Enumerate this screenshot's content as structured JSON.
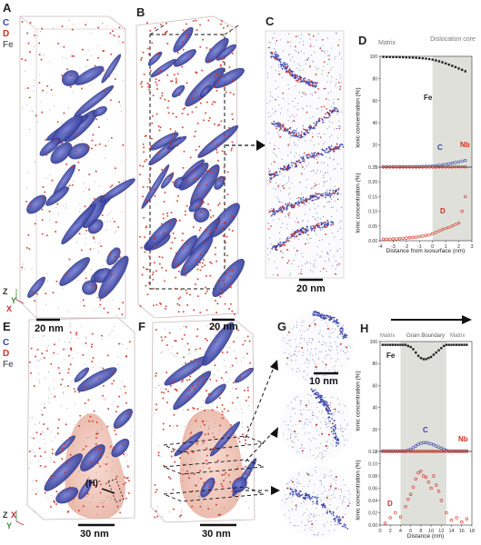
{
  "legend_top": {
    "c": "C",
    "d": "D",
    "fe": "Fe"
  },
  "legend_bottom": {
    "c": "C",
    "d": "D",
    "fe": "Fe"
  },
  "colors": {
    "carbon": "#3a44a8",
    "deuterium": "#d03020",
    "iron": "#6b6b6b",
    "boundary_shade": "#d8d8d2"
  },
  "panels": {
    "A": "A",
    "B": "B",
    "C": "C",
    "D": "D",
    "E": "E",
    "F": "F",
    "G": "G",
    "H": "H"
  },
  "scales": {
    "a": "20 nm",
    "b": "20 nm",
    "c": "20 nm",
    "e": "30 nm",
    "f": "30 nm",
    "g": "10 nm"
  },
  "axes": {
    "z": "Z",
    "x": "X",
    "y": "Y"
  },
  "marker_h": "(H)",
  "chart_data": [
    {
      "type": "scatter",
      "panel": "D",
      "region_labels": [
        "Matrix",
        "Dislocation core"
      ],
      "xlabel": "Distance from isosurface (nm)",
      "xlim": [
        -4,
        3
      ],
      "x_ticks": [
        "-4",
        "-3",
        "-2",
        "-1",
        "0",
        "1",
        "2",
        "3"
      ],
      "top": {
        "ylabel": "Ionic concentration (%)",
        "ylim": [
          0,
          100
        ],
        "y_ticks": [
          "0",
          "20",
          "40",
          "60",
          "80",
          "100"
        ],
        "series": [
          {
            "name": "Fe",
            "x": [
              -3.75,
              -3.5,
              -3.25,
              -3,
              -2.75,
              -2.5,
              -2.25,
              -2,
              -1.75,
              -1.5,
              -1.25,
              -1,
              -0.75,
              -0.5,
              -0.25,
              0,
              0.25,
              0.5,
              0.75,
              1,
              1.25,
              1.5,
              1.75,
              2,
              2.25,
              2.5
            ],
            "y": [
              99.5,
              99.4,
              99.4,
              99.3,
              99.3,
              99.2,
              99.1,
              99,
              98.9,
              98.8,
              98.6,
              98.4,
              98.2,
              97.9,
              97.5,
              97,
              96.3,
              95.5,
              94.6,
              93.6,
              92.5,
              91.4,
              90.3,
              89,
              87.8,
              86.5
            ]
          },
          {
            "name": "C",
            "x": [
              -3.75,
              -3.5,
              -3.25,
              -3,
              -2.75,
              -2.5,
              -2.25,
              -2,
              -1.75,
              -1.5,
              -1.25,
              -1,
              -0.75,
              -0.5,
              -0.25,
              0,
              0.25,
              0.5,
              0.75,
              1,
              1.25,
              1.5,
              1.75,
              2,
              2.25,
              2.5
            ],
            "y": [
              0.3,
              0.3,
              0.3,
              0.3,
              0.3,
              0.4,
              0.4,
              0.4,
              0.5,
              0.5,
              0.6,
              0.6,
              0.7,
              0.8,
              0.9,
              1,
              1.3,
              1.6,
              2,
              2.5,
              3,
              3.6,
              4.2,
              4.8,
              5.4,
              6
            ]
          },
          {
            "name": "Nb",
            "x": [
              -3.75,
              -3.5,
              -3.25,
              -3,
              -2.75,
              -2.5,
              -2.25,
              -2,
              -1.75,
              -1.5,
              -1.25,
              -1,
              -0.75,
              -0.5,
              -0.25,
              0,
              0.25,
              0.5,
              0.75,
              1,
              1.25,
              1.5,
              1.75,
              2,
              2.25,
              2.5
            ],
            "y": [
              0.1,
              0.1,
              0.1,
              0.1,
              0.1,
              0.1,
              0.1,
              0.1,
              0.1,
              0.1,
              0.1,
              0.1,
              0.1,
              0.1,
              0.1,
              0.1,
              0.1,
              0.2,
              0.2,
              0.2,
              0.2,
              0.2,
              0.3,
              0.3,
              0.3,
              0.3
            ]
          }
        ]
      },
      "bottom": {
        "ylabel": "Ionic concentration (%)",
        "ylim": [
          0,
          0.25
        ],
        "y_ticks": [
          "0.00",
          "0.05",
          "0.10",
          "0.15",
          "0.20",
          "0.25"
        ],
        "series": [
          {
            "name": "D",
            "x": [
              -3.75,
              -3.5,
              -3.25,
              -3,
              -2.75,
              -2.5,
              -2.25,
              -2,
              -1.75,
              -1.5,
              -1.25,
              -1,
              -0.75,
              -0.5,
              -0.25,
              0,
              0.25,
              0.5,
              0.75,
              1,
              1.25,
              1.5,
              1.75,
              2,
              2.25,
              2.5
            ],
            "y": [
              0.005,
              0.005,
              0.005,
              0.006,
              0.006,
              0.007,
              0.008,
              0.009,
              0.01,
              0.011,
              0.012,
              0.014,
              0.016,
              0.018,
              0.02,
              0.024,
              0.028,
              0.033,
              0.038,
              0.042,
              0.045,
              0.05,
              0.055,
              0.06,
              0.1,
              0.15
            ]
          }
        ]
      }
    },
    {
      "type": "scatter",
      "panel": "H",
      "region_labels": [
        "Matrix",
        "Grain Boundary",
        "Matrix"
      ],
      "xlabel": "Distance (nm)",
      "xlim": [
        0,
        18
      ],
      "x_ticks": [
        "0",
        "2",
        "4",
        "6",
        "8",
        "10",
        "12",
        "14",
        "16",
        "18"
      ],
      "top": {
        "ylabel": "Ionic concentration (%)",
        "ylim": [
          0,
          100
        ],
        "y_ticks": [
          "0",
          "20",
          "40",
          "60",
          "80",
          "100"
        ],
        "series": [
          {
            "name": "Fe",
            "x": [
              0.5,
              1,
              1.5,
              2,
              2.5,
              3,
              3.5,
              4,
              4.5,
              5,
              5.5,
              6,
              6.5,
              7,
              7.5,
              8,
              8.5,
              9,
              9.5,
              10,
              10.5,
              11,
              11.5,
              12,
              12.5,
              13,
              13.5,
              14,
              14.5,
              15,
              15.5,
              16,
              16.5,
              17
            ],
            "y": [
              97,
              97,
              97,
              97,
              97,
              97,
              97,
              97,
              97,
              97,
              96,
              95,
              93,
              90,
              87,
              85,
              84,
              84,
              85,
              86,
              88,
              90,
              92,
              94,
              96,
              97,
              97,
              97,
              97,
              97,
              97,
              97,
              97,
              97
            ]
          },
          {
            "name": "C",
            "x": [
              0.5,
              1,
              1.5,
              2,
              2.5,
              3,
              3.5,
              4,
              4.5,
              5,
              5.5,
              6,
              6.5,
              7,
              7.5,
              8,
              8.5,
              9,
              9.5,
              10,
              10.5,
              11,
              11.5,
              12,
              12.5,
              13,
              13.5,
              14,
              14.5,
              15,
              15.5,
              16,
              16.5,
              17
            ],
            "y": [
              0.5,
              0.5,
              0.5,
              0.5,
              0.5,
              0.5,
              0.5,
              0.5,
              0.5,
              0.5,
              1,
              2,
              3.5,
              5,
              6.5,
              7.5,
              8,
              8,
              7.5,
              7,
              6,
              5,
              4,
              3,
              2,
              1,
              0.5,
              0.5,
              0.5,
              0.5,
              0.5,
              0.5,
              0.5,
              0.5
            ]
          },
          {
            "name": "Nb",
            "x": [
              0.5,
              1,
              1.5,
              2,
              2.5,
              3,
              3.5,
              4,
              4.5,
              5,
              5.5,
              6,
              6.5,
              7,
              7.5,
              8,
              8.5,
              9,
              9.5,
              10,
              10.5,
              11,
              11.5,
              12,
              12.5,
              13,
              13.5,
              14,
              14.5,
              15,
              15.5,
              16,
              16.5,
              17
            ],
            "y": [
              0.1,
              0.1,
              0.1,
              0.1,
              0.1,
              0.1,
              0.1,
              0.1,
              0.1,
              0.1,
              0.1,
              0.1,
              0.1,
              0.1,
              0.1,
              0.1,
              0.1,
              0.1,
              0.1,
              0.1,
              0.1,
              0.1,
              0.1,
              0.1,
              0.1,
              0.1,
              0.1,
              0.1,
              0.1,
              0.1,
              0.1,
              0.1,
              0.1,
              0.1
            ]
          }
        ]
      },
      "bottom": {
        "ylabel": "Ionic concentration (%)",
        "ylim": [
          0,
          0.12
        ],
        "y_ticks": [
          "0.00",
          "0.02",
          "0.04",
          "0.06",
          "0.08",
          "0.10",
          "0.12"
        ],
        "series": [
          {
            "name": "D",
            "x": [
              1,
              2,
              3,
              4,
              5,
              5.5,
              6,
              6.5,
              7,
              7.5,
              8,
              8.5,
              9,
              9.5,
              10,
              10.5,
              11,
              11.5,
              12,
              13,
              14,
              15,
              16,
              17
            ],
            "y": [
              0.003,
              0.012,
              0.02,
              0.013,
              0.03,
              0.042,
              0.05,
              0.062,
              0.075,
              0.085,
              0.088,
              0.08,
              0.078,
              0.07,
              0.06,
              0.08,
              0.065,
              0.055,
              0.04,
              0.02,
              0.008,
              0.012,
              0.005,
              0.01
            ]
          }
        ]
      }
    }
  ]
}
